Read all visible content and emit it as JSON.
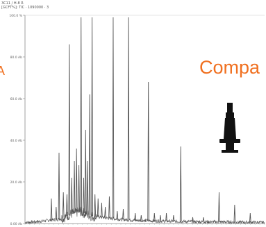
{
  "header": {
    "label": "3C11 / H-8 R",
    "sublabel": "[GCFT%]: TIC · 1090000 · 3"
  },
  "overlay_text": "Compa",
  "left_glyph": "A",
  "colors": {
    "accent": "#f07020",
    "trace": "#555555",
    "frame": "#888888",
    "icon": "#111111"
  },
  "icons": {
    "device": "connector-plug-icon"
  },
  "chart_data": {
    "type": "line",
    "title": "",
    "xlabel": "",
    "ylabel": "",
    "ylim": [
      0,
      100
    ],
    "ytick_labels": [
      "0.00 Ab",
      "20.0 Ab",
      "40.0 Ab",
      "60.0 Ab",
      "80.0 Ab",
      "100.0 %"
    ],
    "ytick_values": [
      0,
      20,
      40,
      60,
      80,
      100
    ],
    "xlim": [
      0,
      100
    ],
    "baseline": [
      [
        0,
        0.5
      ],
      [
        3,
        0.7
      ],
      [
        6,
        1.0
      ],
      [
        10,
        1.6
      ],
      [
        14,
        2.0
      ],
      [
        17,
        3.2
      ],
      [
        19,
        4.5
      ],
      [
        21,
        5.2
      ],
      [
        23,
        5.8
      ],
      [
        25,
        4.8
      ],
      [
        28,
        3.5
      ],
      [
        31,
        3.2
      ],
      [
        35,
        2.5
      ],
      [
        40,
        2.0
      ],
      [
        45,
        1.6
      ],
      [
        50,
        1.4
      ],
      [
        55,
        1.2
      ],
      [
        60,
        1.1
      ],
      [
        65,
        1.0
      ],
      [
        70,
        0.9
      ],
      [
        75,
        0.8
      ],
      [
        80,
        0.8
      ],
      [
        85,
        0.7
      ],
      [
        90,
        0.6
      ],
      [
        95,
        0.6
      ],
      [
        100,
        0.5
      ]
    ],
    "peaks": [
      {
        "x": 11.0,
        "y": 12.0
      },
      {
        "x": 13.0,
        "y": 8.0
      },
      {
        "x": 14.2,
        "y": 34.0
      },
      {
        "x": 16.0,
        "y": 15.0
      },
      {
        "x": 17.5,
        "y": 14.0
      },
      {
        "x": 18.5,
        "y": 86.0
      },
      {
        "x": 19.5,
        "y": 22.0
      },
      {
        "x": 20.6,
        "y": 30.0
      },
      {
        "x": 21.5,
        "y": 36.0
      },
      {
        "x": 22.5,
        "y": 28.0
      },
      {
        "x": 23.4,
        "y": 99.0
      },
      {
        "x": 24.5,
        "y": 22.0
      },
      {
        "x": 25.3,
        "y": 45.0
      },
      {
        "x": 26.1,
        "y": 30.0
      },
      {
        "x": 27.0,
        "y": 62.0
      },
      {
        "x": 28.0,
        "y": 99.0
      },
      {
        "x": 29.2,
        "y": 14.0
      },
      {
        "x": 30.5,
        "y": 12.0
      },
      {
        "x": 32.0,
        "y": 10.0
      },
      {
        "x": 33.5,
        "y": 8.0
      },
      {
        "x": 35.2,
        "y": 13.0
      },
      {
        "x": 36.8,
        "y": 99.0
      },
      {
        "x": 38.5,
        "y": 6.0
      },
      {
        "x": 41.0,
        "y": 7.0
      },
      {
        "x": 43.2,
        "y": 99.0
      },
      {
        "x": 46.0,
        "y": 5.0
      },
      {
        "x": 48.5,
        "y": 4.0
      },
      {
        "x": 51.5,
        "y": 68.0
      },
      {
        "x": 54.0,
        "y": 5.0
      },
      {
        "x": 56.5,
        "y": 4.0
      },
      {
        "x": 59.0,
        "y": 5.0
      },
      {
        "x": 62.0,
        "y": 4.0
      },
      {
        "x": 65.0,
        "y": 37.0
      },
      {
        "x": 70.0,
        "y": 3.0
      },
      {
        "x": 74.5,
        "y": 3.0
      },
      {
        "x": 81.0,
        "y": 15.0
      },
      {
        "x": 87.5,
        "y": 9.0
      },
      {
        "x": 94.0,
        "y": 5.0
      }
    ]
  }
}
